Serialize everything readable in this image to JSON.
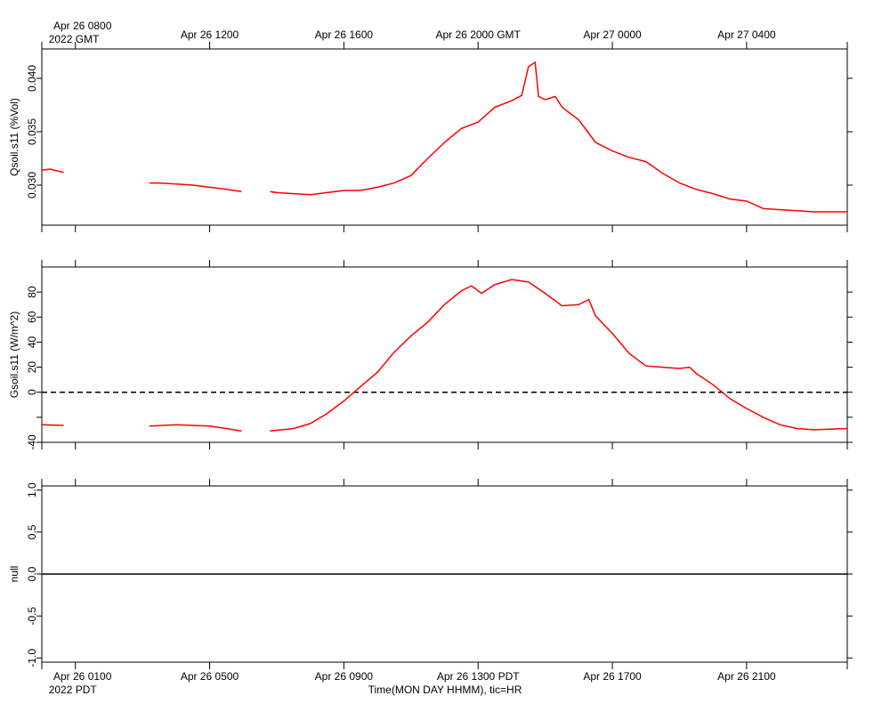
{
  "chart_data": [
    {
      "type": "line",
      "ylabel": "Qsoil.s11 (%Vol)",
      "xlim": [
        0,
        24
      ],
      "ylim": [
        0.02625,
        0.04275
      ],
      "yticks": [
        {
          "value": 0.03,
          "label": "0.030"
        },
        0.035,
        {
          "value": 0.04,
          "label": "0.040"
        }
      ],
      "xticks_position": "top",
      "xticks": [
        {
          "value": 1,
          "label": "Apr 26 0800"
        },
        {
          "value": 5,
          "label": "Apr 26 1200"
        },
        {
          "value": 9,
          "label": "Apr 26 1600"
        },
        {
          "value": 13,
          "label": "Apr 26 2000 GMT"
        },
        {
          "value": 17,
          "label": "Apr 27 0000"
        },
        {
          "value": 21,
          "label": "Apr 27 0400"
        }
      ],
      "xtick_note": "2022 GMT",
      "x": [
        0,
        0.25,
        0.5,
        0.65,
        1.5,
        3.2,
        3.5,
        4,
        4.5,
        5,
        5.5,
        5.95,
        6.4,
        6.8,
        7,
        7.5,
        8,
        8.5,
        9,
        9.5,
        10,
        10.5,
        11,
        11.5,
        12,
        12.5,
        13,
        13.5,
        14,
        14.3,
        14.5,
        14.7,
        14.8,
        15,
        15.3,
        15.5,
        16,
        16.5,
        17,
        17.5,
        18,
        18.5,
        19,
        19.5,
        20,
        20.5,
        21,
        21.5,
        22,
        22.5,
        23,
        23.5,
        24
      ],
      "series": [
        {
          "color": "#ff0000",
          "values": [
            0.0314,
            0.0315,
            0.0313,
            0.0312,
            null,
            0.0302,
            0.0302,
            0.0301,
            0.03,
            0.0298,
            0.0296,
            0.0294,
            null,
            0.0294,
            0.0293,
            0.0292,
            0.0291,
            0.0293,
            0.0295,
            0.0295,
            0.0298,
            0.0302,
            0.0309,
            0.0325,
            0.034,
            0.0353,
            0.0359,
            0.0373,
            0.0379,
            0.0384,
            0.0411,
            0.0415,
            0.0383,
            0.038,
            0.0383,
            0.0373,
            0.0361,
            0.034,
            0.0332,
            0.0326,
            0.0322,
            0.0311,
            0.0302,
            0.0296,
            0.0292,
            0.0287,
            0.0285,
            0.0278,
            0.0277,
            0.0276,
            0.0275,
            0.0275,
            0.0275
          ]
        }
      ]
    },
    {
      "type": "line",
      "ylabel": "Gsoil.s11 (W/m^2)",
      "xlim": [
        0,
        24
      ],
      "ylim": [
        -40,
        100
      ],
      "yticks": [
        {
          "value": -40,
          "label": "-40"
        },
        {
          "value": -20,
          "label": null
        },
        0,
        20,
        40,
        60,
        80
      ],
      "zero_line": true,
      "x": [
        0,
        0.65,
        1.5,
        3.2,
        4,
        5,
        5.5,
        5.95,
        6.4,
        6.8,
        7.5,
        8,
        8.5,
        9,
        9.3,
        10,
        10.5,
        11,
        11.5,
        12,
        12.5,
        12.8,
        13.1,
        13.5,
        14,
        14.5,
        15,
        15.5,
        16,
        16.3,
        16.5,
        17,
        17.5,
        18,
        18.5,
        19,
        19.3,
        19.5,
        20,
        20.5,
        21,
        21.5,
        22,
        22.5,
        23,
        24
      ],
      "series": [
        {
          "color": "#ff0000",
          "values": [
            -26,
            -26.5,
            null,
            -27,
            -26,
            -27,
            -29,
            -31,
            null,
            -31,
            -29,
            -25,
            -17,
            -7,
            0,
            16,
            32,
            45,
            56,
            70,
            81,
            85,
            79,
            86,
            90,
            88,
            79,
            69,
            70,
            74,
            61,
            47,
            31,
            21,
            20,
            19,
            20,
            15,
            6,
            -5,
            -13,
            -20,
            -26,
            -29,
            -30,
            -29
          ]
        }
      ]
    },
    {
      "type": "line",
      "ylabel": "null",
      "xlim": [
        0,
        24
      ],
      "ylim": [
        -1.05,
        1.05
      ],
      "yticks": [
        {
          "value": -1,
          "label": "-1.0"
        },
        -0.5,
        {
          "value": 0,
          "label": "0.0"
        },
        0.5,
        {
          "value": 1,
          "label": "1.0"
        }
      ],
      "xticks_position": "bottom",
      "xticks": [
        {
          "value": 1,
          "label": "Apr 26 0100"
        },
        {
          "value": 5,
          "label": "Apr 26 0500"
        },
        {
          "value": 9,
          "label": "Apr 26 0900"
        },
        {
          "value": 13,
          "label": "Apr 26 1300 PDT"
        },
        {
          "value": 17,
          "label": "Apr 26 1700"
        },
        {
          "value": 21,
          "label": "Apr 26 2100"
        }
      ],
      "xtick_note": "2022 PDT",
      "xlabel": "Time(MON DAY HHMM), tic=HR",
      "x": [
        0,
        24
      ],
      "series": [
        {
          "color": "#000000",
          "values": [
            0,
            0
          ]
        }
      ]
    }
  ]
}
